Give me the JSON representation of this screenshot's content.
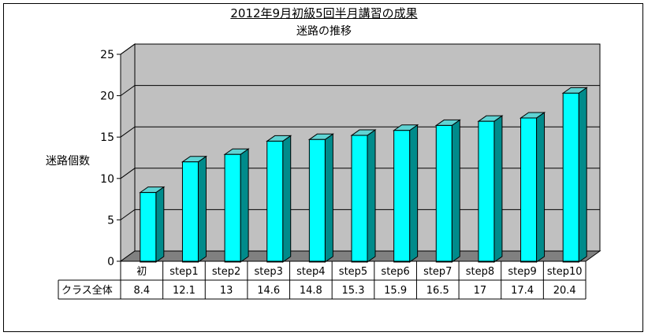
{
  "chart_data": {
    "type": "bar",
    "title": "2012年9月初級5回半月講習の成果",
    "subtitle": "迷路の推移",
    "ylabel": "迷路個数",
    "categories": [
      "初",
      "step1",
      "step2",
      "step3",
      "step4",
      "step5",
      "step6",
      "step7",
      "step8",
      "step9",
      "step10"
    ],
    "series": [
      {
        "name": "クラス全体",
        "values": [
          8.4,
          12.1,
          13,
          14.6,
          14.8,
          15.3,
          15.9,
          16.5,
          17,
          17.4,
          20.4
        ]
      }
    ],
    "value_labels": [
      "8.4",
      "12.1",
      "13",
      "14.6",
      "14.8",
      "15.3",
      "15.9",
      "16.5",
      "17",
      "17.4",
      "20.4"
    ],
    "ylim": [
      0,
      25
    ],
    "yticks": [
      0,
      5,
      10,
      15,
      20,
      25
    ],
    "grid": true,
    "style": "3d-column",
    "colors": {
      "bar_front": "#00ffff",
      "bar_side": "#008b8b",
      "bar_top": "#5fd3d3",
      "wall": "#c0c0c0",
      "floor": "#808080"
    }
  }
}
